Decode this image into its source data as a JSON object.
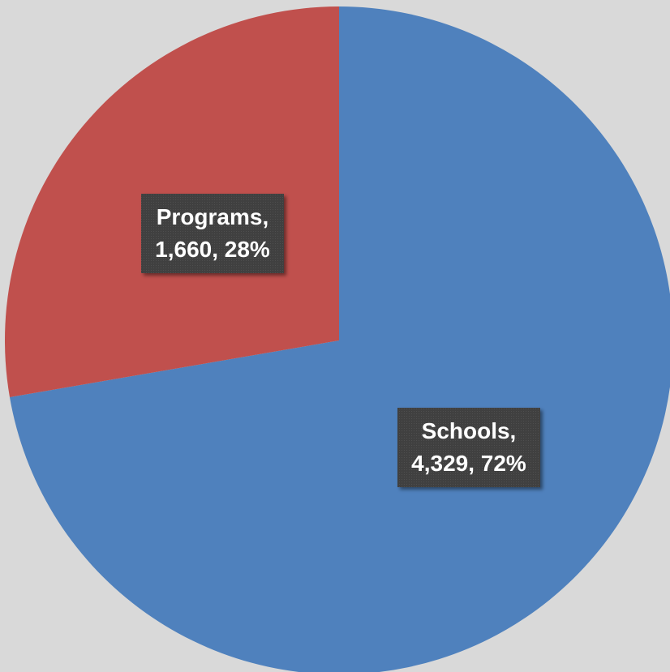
{
  "chart_data": {
    "type": "pie",
    "title": "",
    "slices": [
      {
        "category": "Schools",
        "value": 4329,
        "percent": 72,
        "color": "#4f81bd",
        "label_lines": [
          "Schools,",
          "4,329, 72%"
        ]
      },
      {
        "category": "Programs",
        "value": 1660,
        "percent": 28,
        "color": "#c0504d",
        "label_lines": [
          "Programs,",
          "1,660, 28%"
        ]
      }
    ],
    "start_angle": "12 o'clock",
    "direction": "clockwise",
    "legend": "none",
    "data_labels": "inside, dark boxes"
  },
  "colors": {
    "background": "#d9d9d9",
    "label_box": "#404040",
    "label_text": "#ffffff"
  }
}
